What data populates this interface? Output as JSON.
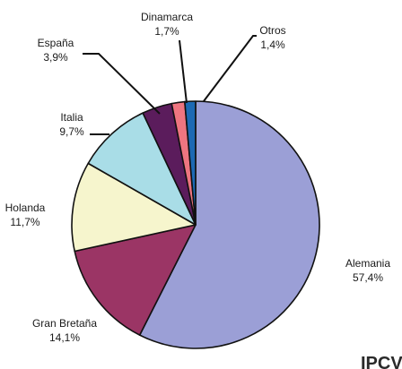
{
  "chart_data": {
    "type": "pie",
    "start": "top, clockwise",
    "slices": [
      {
        "label": "Alemania",
        "value": 57.4,
        "value_label": "57,4%",
        "color": "#9b9fd6"
      },
      {
        "label": "Gran Bretaña",
        "value": 14.1,
        "value_label": "14,1%",
        "color": "#9b3565"
      },
      {
        "label": "Holanda",
        "value": 11.7,
        "value_label": "11,7%",
        "color": "#f6f5cd"
      },
      {
        "label": "Italia",
        "value": 9.7,
        "value_label": "9,7%",
        "color": "#a9dde7"
      },
      {
        "label": "España",
        "value": 3.9,
        "value_label": "3,9%",
        "color": "#5b1c5c"
      },
      {
        "label": "Dinamarca",
        "value": 1.7,
        "value_label": "1,7%",
        "color": "#ee7580"
      },
      {
        "label": "Otros",
        "value": 1.4,
        "value_label": "1,4%",
        "color": "#1c69b3"
      }
    ],
    "watermark": "IPCV"
  }
}
